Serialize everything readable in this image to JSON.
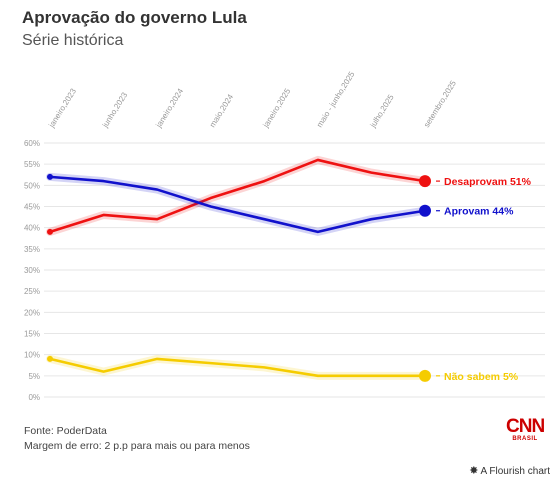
{
  "header": {
    "title": "Aprovação do governo Lula",
    "subtitle": "Série histórica"
  },
  "footer": {
    "source": "Fonte: PoderData",
    "note": "Margem de erro: 2 p.p para mais ou para menos",
    "logo_text": "CNN",
    "logo_sub": "BRASIL",
    "credit": "A Flourish chart"
  },
  "chart_data": {
    "type": "line",
    "x_ticks": [
      "janeiro,2023",
      "junho,2023",
      "janeiro,2024",
      "maio,2024",
      "janeiro,2025",
      "maio - junho,2025",
      "julho,2025",
      "setembro,2025"
    ],
    "y_ticks": [
      "60%",
      "55%",
      "50%",
      "45%",
      "40%",
      "35%",
      "30%",
      "25%",
      "20%",
      "15%",
      "10%",
      "5%",
      "0%"
    ],
    "ylim": [
      0,
      60
    ],
    "grid": true,
    "legend": "end-labels",
    "series": [
      {
        "name": "Desaprovam",
        "label": "Desaprovam 51%",
        "color": "#ee1111",
        "values": [
          39,
          43,
          42,
          47,
          51,
          56,
          53,
          51
        ]
      },
      {
        "name": "Aprovam",
        "label": "Aprovam 44%",
        "color": "#1111cc",
        "values": [
          52,
          51,
          49,
          45,
          42,
          39,
          42,
          44
        ]
      },
      {
        "name": "Não sabem",
        "label": "Não sabem 5%",
        "color": "#f5cc00",
        "values": [
          9,
          6,
          9,
          8,
          7,
          5,
          5,
          5
        ]
      }
    ]
  }
}
